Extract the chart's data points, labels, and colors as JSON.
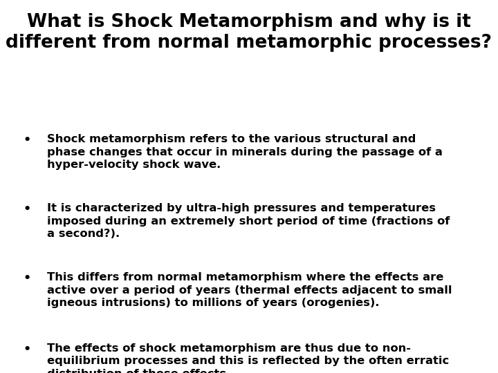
{
  "title_line1": "What is Shock Metamorphism and why is it",
  "title_line2": "different from normal metamorphic processes?",
  "title_fontsize": 19,
  "bullet_fontsize": 11.8,
  "background_color": "#ffffff",
  "text_color": "#000000",
  "bullet_dot": "•",
  "bullets": [
    "Shock metamorphism refers to the various structural and\nphase changes that occur in minerals during the passage of a\nhyper-velocity shock wave.",
    "It is characterized by ultra-high pressures and temperatures\nimposed during an extremely short period of time (fractions of\na second?).",
    "This differs from normal metamorphism where the effects are\nactive over a period of years (thermal effects adjacent to small\nigneous intrusions) to millions of years (orogenies).",
    "The effects of shock metamorphism are thus due to non-\nequilibrium processes and this is reflected by the often erratic\ndistribution of these effects."
  ]
}
